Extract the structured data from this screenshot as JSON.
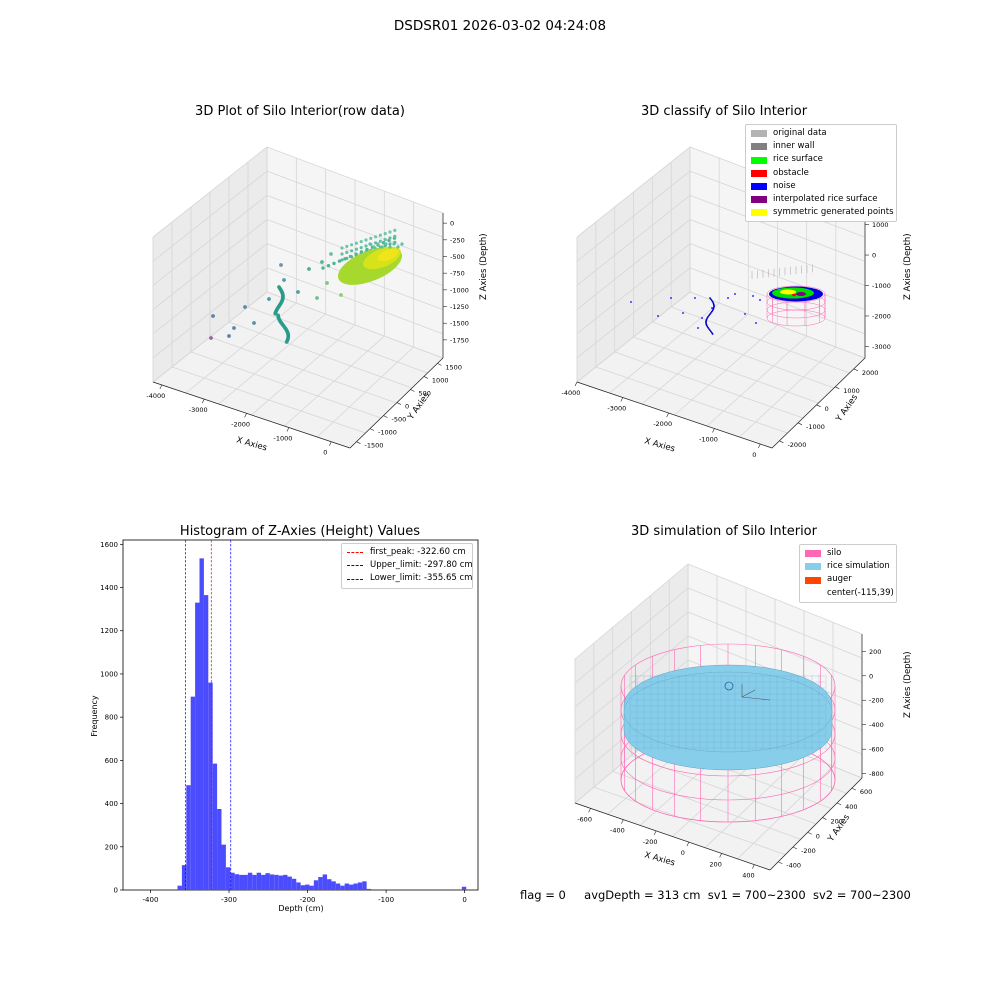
{
  "suptitle": "DSDSR01 2026-03-02 04:24:08",
  "panels": {
    "raw": {
      "title": "3D Plot of Silo Interior(row data)",
      "xlabel": "X Axies",
      "ylabel": "Y Axies",
      "zlabel": "Z Axies (Depth)",
      "xticks": [
        "-4000",
        "-3000",
        "-2000",
        "-1000",
        "0"
      ],
      "yticks": [
        "-1500",
        "-1000",
        "-500",
        "0",
        "500",
        "1000",
        "1500"
      ],
      "zticks": [
        "0",
        "-250",
        "-500",
        "-750",
        "-1000",
        "-1250",
        "-1500",
        "-1750"
      ]
    },
    "classify": {
      "title": "3D classify of Silo Interior",
      "xlabel": "X Axies",
      "ylabel": "Y Axies",
      "zlabel": "Z Axies (Depth)",
      "xticks": [
        "-4000",
        "-3000",
        "-2000",
        "-1000",
        "0"
      ],
      "yticks": [
        "-2000",
        "-1000",
        "0",
        "1000",
        "2000"
      ],
      "zticks": [
        "1000",
        "0",
        "-1000",
        "-2000",
        "-3000"
      ],
      "legend": [
        {
          "label": "original data",
          "color": "#b3b3b3"
        },
        {
          "label": "inner wall",
          "color": "#808080"
        },
        {
          "label": "rice surface",
          "color": "#00ff00"
        },
        {
          "label": "obstacle",
          "color": "#ff0000"
        },
        {
          "label": "noise",
          "color": "#0000ff"
        },
        {
          "label": "interpolated rice surface",
          "color": "#800080"
        },
        {
          "label": "symmetric generated points",
          "color": "#ffff00"
        }
      ]
    },
    "simulation": {
      "title": "3D simulation of Silo Interior",
      "xlabel": "X Axies",
      "ylabel": "Y Axies",
      "zlabel": "Z Axies (Depth)",
      "xticks": [
        "-600",
        "-400",
        "-200",
        "0",
        "200",
        "400"
      ],
      "yticks": [
        "-400",
        "-200",
        "0",
        "200",
        "400",
        "600"
      ],
      "zticks": [
        "200",
        "0",
        "-200",
        "-400",
        "-600",
        "-800"
      ],
      "legend": [
        {
          "label": "silo",
          "color": "#ff69b4"
        },
        {
          "label": "rice simulation",
          "color": "#87ceeb"
        },
        {
          "label": "auger",
          "color": "#ff4500"
        },
        {
          "label": "center(-115,39)",
          "color": ""
        }
      ]
    }
  },
  "footer": {
    "flag": "flag = 0",
    "avg": "avgDepth = 313 cm",
    "sv1": "sv1 = 700~2300",
    "sv2": "sv2 = 700~2300"
  },
  "chart_data": {
    "type": "bar",
    "title": "Histogram of Z-Axies (Height) Values",
    "xlabel": "Depth (cm)",
    "ylabel": "Frequency",
    "xlim": [
      -435,
      17
    ],
    "ylim": [
      0,
      1620
    ],
    "xticks": [
      -400,
      -300,
      -200,
      -100,
      0
    ],
    "yticks": [
      0,
      200,
      400,
      600,
      800,
      1000,
      1200,
      1400,
      1600
    ],
    "bin_width": 5.6,
    "bin_starts": [
      -365.6,
      -360.0,
      -354.4,
      -348.8,
      -343.2,
      -337.6,
      -332.0,
      -326.4,
      -320.8,
      -315.2,
      -309.6,
      -304.0,
      -298.4,
      -292.8,
      -287.2,
      -281.6,
      -276.0,
      -270.4,
      -264.8,
      -259.2,
      -253.6,
      -248.0,
      -242.4,
      -236.8,
      -231.2,
      -225.6,
      -220.0,
      -214.4,
      -208.8,
      -203.2,
      -197.6,
      -192.0,
      -186.4,
      -180.8,
      -175.2,
      -169.6,
      -164.0,
      -158.4,
      -152.8,
      -147.2,
      -141.6,
      -136.0,
      -130.4,
      -124.8,
      -119.2,
      -113.6,
      -108.0,
      -102.4,
      -96.8,
      -91.2,
      -85.6,
      -80.0,
      -74.4,
      -68.8,
      -63.2,
      -57.6,
      -52.0,
      -46.4,
      -40.8,
      -3.6
    ],
    "values": [
      20,
      115,
      485,
      895,
      1330,
      1535,
      1365,
      960,
      585,
      375,
      210,
      105,
      80,
      73,
      70,
      70,
      80,
      70,
      80,
      70,
      78,
      72,
      70,
      67,
      70,
      62,
      52,
      35,
      22,
      25,
      20,
      45,
      60,
      72,
      50,
      40,
      30,
      20,
      30,
      25,
      30,
      35,
      40,
      5,
      0,
      0,
      0,
      0,
      0,
      0,
      0,
      0,
      0,
      0,
      0,
      0,
      0,
      0,
      0,
      15
    ],
    "vlines": [
      {
        "label": "first_peak: -322.60 cm",
        "x": -322.6,
        "color": "#ff0000"
      },
      {
        "label": "Upper_limit: -297.80 cm",
        "x": -297.8,
        "color": "#0000ff"
      },
      {
        "label": "Lower_limit: -355.65 cm",
        "x": -355.65,
        "color": "#0000ff"
      }
    ],
    "bar_color": "#4c4cff"
  }
}
